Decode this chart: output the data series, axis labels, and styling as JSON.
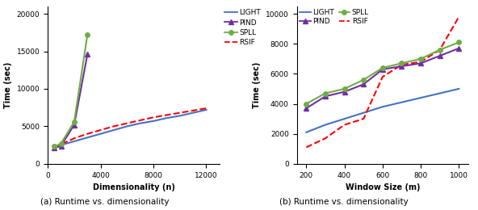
{
  "left": {
    "xlabel": "Dimensionality (n)",
    "ylabel": "Time (sec)",
    "xlim": [
      0,
      13000
    ],
    "ylim": [
      0,
      21000
    ],
    "xticks": [
      0,
      4000,
      8000,
      12000
    ],
    "yticks": [
      0,
      5000,
      10000,
      15000,
      20000
    ],
    "light": {
      "x": [
        500,
        1000,
        2000,
        3000,
        4000,
        5000,
        6000,
        7000,
        8000,
        9000,
        10000,
        11000,
        12000
      ],
      "y": [
        2200,
        2500,
        3000,
        3500,
        4000,
        4500,
        5000,
        5400,
        5700,
        6100,
        6400,
        6800,
        7200
      ],
      "color": "#4472C4",
      "style": "-",
      "marker": null,
      "lw": 1.5
    },
    "pind": {
      "x": [
        500,
        1000,
        2000,
        3000
      ],
      "y": [
        2100,
        2400,
        5200,
        14600
      ],
      "color": "#7030A0",
      "style": "-",
      "marker": "^",
      "lw": 1.5
    },
    "spll": {
      "x": [
        500,
        1000,
        2000,
        3000
      ],
      "y": [
        2300,
        2700,
        5600,
        17200
      ],
      "color": "#70AD47",
      "style": "-",
      "marker": "o",
      "lw": 1.5
    },
    "rsif": {
      "x": [
        500,
        1000,
        2000,
        3000,
        4000,
        5000,
        6000,
        7000,
        8000,
        9000,
        10000,
        11000,
        12000
      ],
      "y": [
        2000,
        2600,
        3400,
        4000,
        4500,
        5000,
        5400,
        5800,
        6200,
        6500,
        6800,
        7100,
        7400
      ],
      "color": "#FF0000",
      "style": "--",
      "marker": null,
      "lw": 1.5
    },
    "caption": "(a) Runtime vs. dimensionality"
  },
  "right": {
    "xlabel": "Window Size (m)",
    "ylabel": "Time (sec)",
    "xlim": [
      150,
      1050
    ],
    "ylim": [
      0,
      10500
    ],
    "xticks": [
      200,
      400,
      600,
      800,
      1000
    ],
    "yticks": [
      0,
      2000,
      4000,
      6000,
      8000,
      10000
    ],
    "light": {
      "x": [
        200,
        300,
        400,
        500,
        600,
        700,
        800,
        900,
        1000
      ],
      "y": [
        2100,
        2600,
        3000,
        3400,
        3800,
        4100,
        4400,
        4700,
        5000
      ],
      "color": "#4472C4",
      "style": "-",
      "marker": null,
      "lw": 1.5
    },
    "pind": {
      "x": [
        200,
        300,
        400,
        500,
        600,
        700,
        800,
        900,
        1000
      ],
      "y": [
        3700,
        4500,
        4800,
        5300,
        6300,
        6500,
        6700,
        7200,
        7700
      ],
      "color": "#7030A0",
      "style": "-",
      "marker": "^",
      "lw": 1.5
    },
    "spll": {
      "x": [
        200,
        300,
        400,
        500,
        600,
        700,
        800,
        900,
        1000
      ],
      "y": [
        4000,
        4700,
        5000,
        5600,
        6400,
        6700,
        7000,
        7600,
        8100
      ],
      "color": "#70AD47",
      "style": "-",
      "marker": "o",
      "lw": 1.5
    },
    "rsif": {
      "x": [
        200,
        300,
        400,
        500,
        600,
        700,
        800,
        900,
        1000
      ],
      "y": [
        1100,
        1700,
        2600,
        3000,
        5800,
        6600,
        6800,
        7600,
        9800
      ],
      "color": "#FF0000",
      "style": "--",
      "marker": null,
      "lw": 1.5
    },
    "caption": "(b) Runtime vs. dimensionality"
  },
  "legend_labels": [
    "LIGHT",
    "PIND",
    "SPLL",
    "RSIF"
  ],
  "legend_colors": [
    "#4472C4",
    "#7030A0",
    "#70AD47",
    "#FF0000"
  ],
  "legend_styles": [
    "-",
    "-",
    "-",
    "--"
  ],
  "legend_markers": [
    null,
    "^",
    "o",
    null
  ]
}
